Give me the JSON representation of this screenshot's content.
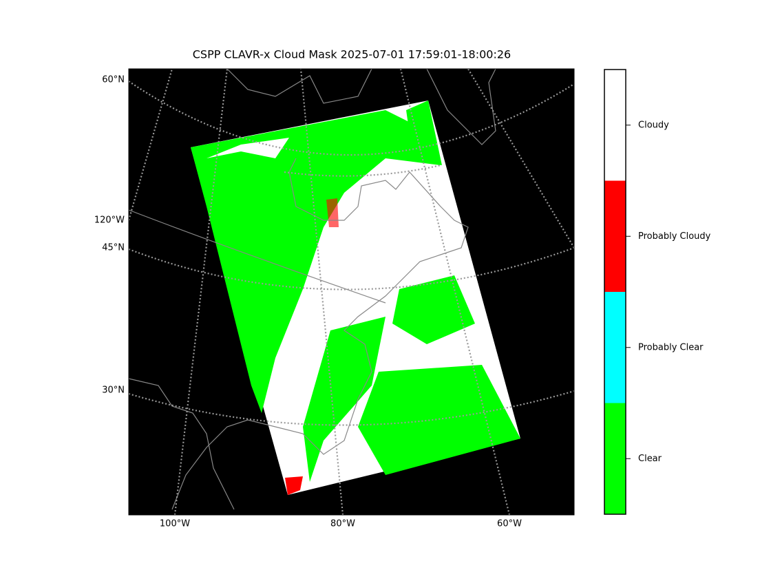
{
  "title": "CSPP CLAVR-x Cloud Mask 2025-07-01 17:59:01-18:00:26",
  "map": {
    "lat_labels": [
      "60°N",
      "120°W",
      "45°N",
      "30°N"
    ],
    "lon_labels": [
      "100°W",
      "80°W",
      "60°W"
    ]
  },
  "colorbar": {
    "categories": [
      {
        "label": "Clear",
        "color": "#00ff00"
      },
      {
        "label": "Probably Clear",
        "color": "#00ffff"
      },
      {
        "label": "Probably Cloudy",
        "color": "#ff0000"
      },
      {
        "label": "Cloudy",
        "color": "#ffffff"
      }
    ]
  }
}
